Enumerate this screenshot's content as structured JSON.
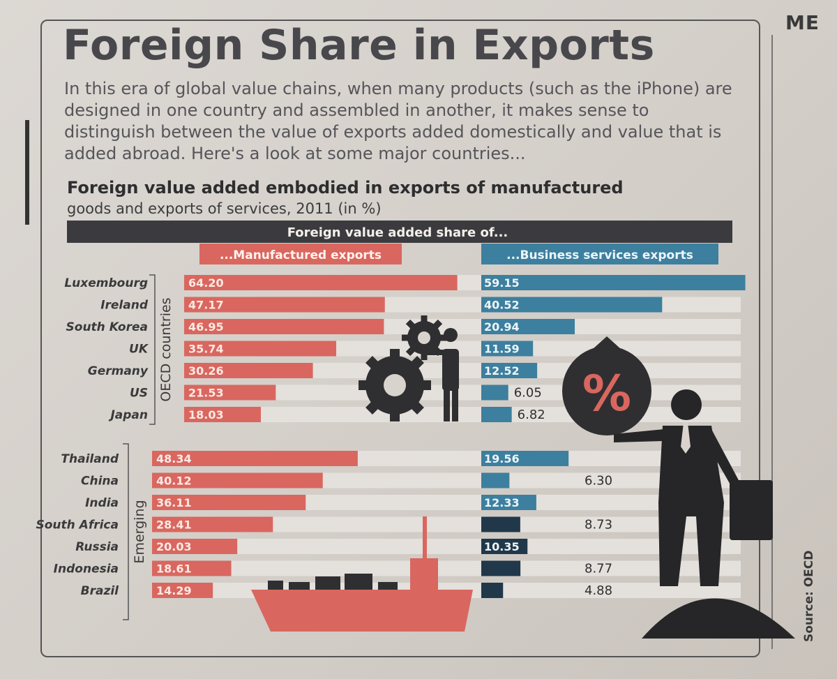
{
  "page": {
    "side_word": "ME",
    "title": "Foreign Share in Exports",
    "intro": "In this era of global value chains, when many products (such as the iPhone) are designed in one country and assembled in another, it makes sense to distinguish between the value of exports added domestically and value that is added abroad. Here's a look at some major countries...",
    "subtitle_line1": "Foreign value added embodied in exports of manufactured",
    "subtitle_line2": "goods and exports of services, 2011 (in %)",
    "source": "Source: OECD"
  },
  "colors": {
    "manufactured": "#d9675f",
    "services": "#3d7f9e",
    "header_bar": "#3b3b3f",
    "row_band": "#e4e0dc"
  },
  "icons": [
    "gears-icon",
    "money-bag-percent-icon",
    "businessman-icon",
    "cargo-ship-icon"
  ],
  "chart_data": {
    "type": "bar",
    "title": "Foreign value added share of...",
    "series": [
      {
        "name": "...Manufactured exports"
      },
      {
        "name": "...Business services exports"
      }
    ],
    "groups": [
      {
        "name": "OECD countries",
        "rows": [
          {
            "country": "Luxembourg",
            "manufactured": "64.20",
            "services": "59.15"
          },
          {
            "country": "Ireland",
            "manufactured": "47.17",
            "services": "40.52"
          },
          {
            "country": "South Korea",
            "manufactured": "46.95",
            "services": "20.94"
          },
          {
            "country": "UK",
            "manufactured": "35.74",
            "services": "11.59"
          },
          {
            "country": "Germany",
            "manufactured": "30.26",
            "services": "12.52"
          },
          {
            "country": "US",
            "manufactured": "21.53",
            "services": "6.05"
          },
          {
            "country": "Japan",
            "manufactured": "18.03",
            "services": "6.82"
          }
        ]
      },
      {
        "name": "Emerging",
        "rows": [
          {
            "country": "Thailand",
            "manufactured": "48.34",
            "services": "19.56"
          },
          {
            "country": "China",
            "manufactured": "40.12",
            "services": "6.30"
          },
          {
            "country": "India",
            "manufactured": "36.11",
            "services": "12.33"
          },
          {
            "country": "South Africa",
            "manufactured": "28.41",
            "services": "8.73"
          },
          {
            "country": "Russia",
            "manufactured": "20.03",
            "services": "10.35"
          },
          {
            "country": "Indonesia",
            "manufactured": "18.61",
            "services": "8.77"
          },
          {
            "country": "Brazil",
            "manufactured": "14.29",
            "services": "4.88"
          }
        ]
      }
    ]
  }
}
